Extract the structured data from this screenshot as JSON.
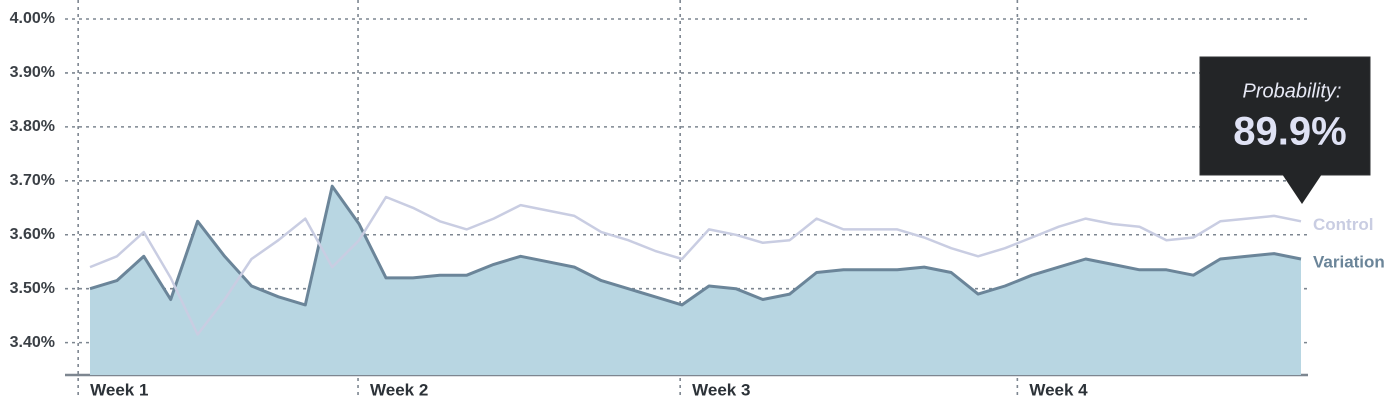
{
  "chart_data": {
    "type": "line",
    "x": [
      0,
      1,
      2,
      3,
      4,
      5,
      6,
      7,
      8,
      9,
      10,
      11,
      12,
      13,
      14,
      15,
      16,
      17,
      18,
      19,
      20,
      21,
      22,
      23,
      24,
      25,
      26,
      27,
      28,
      29,
      30,
      31,
      32,
      33,
      34,
      35,
      36,
      37,
      38,
      39,
      40,
      41,
      42,
      43,
      44,
      45
    ],
    "xlim": [
      -0.44,
      45.3
    ],
    "xticks": [
      {
        "value": -0.44,
        "label": "Week 1"
      },
      {
        "value": 9.96,
        "label": "Week 2"
      },
      {
        "value": 21.93,
        "label": "Week 3"
      },
      {
        "value": 34.46,
        "label": "Week 4"
      }
    ],
    "ylim": [
      3.34,
      4.0
    ],
    "yticks": [
      {
        "value": 3.4,
        "label": "3.40%"
      },
      {
        "value": 3.5,
        "label": "3.50%"
      },
      {
        "value": 3.6,
        "label": "3.60%"
      },
      {
        "value": 3.7,
        "label": "3.70%"
      },
      {
        "value": 3.8,
        "label": "3.80%"
      },
      {
        "value": 3.9,
        "label": "3.90%"
      },
      {
        "value": 4.0,
        "label": "4.00%"
      }
    ],
    "grid": true,
    "series": [
      {
        "name": "Control",
        "color": "#c9cde2",
        "values": [
          3.54,
          3.56,
          3.605,
          3.52,
          3.415,
          3.48,
          3.555,
          3.59,
          3.63,
          3.54,
          3.59,
          3.67,
          3.65,
          3.625,
          3.61,
          3.63,
          3.655,
          3.645,
          3.635,
          3.605,
          3.59,
          3.57,
          3.555,
          3.61,
          3.6,
          3.585,
          3.59,
          3.63,
          3.61,
          3.61,
          3.61,
          3.595,
          3.575,
          3.56,
          3.575,
          3.595,
          3.615,
          3.63,
          3.62,
          3.615,
          3.59,
          3.595,
          3.625,
          3.63,
          3.635,
          3.625
        ]
      },
      {
        "name": "Variation",
        "color": "#6b8599",
        "fill": "#b8d6e2",
        "values": [
          3.5,
          3.515,
          3.56,
          3.48,
          3.625,
          3.56,
          3.505,
          3.485,
          3.47,
          3.69,
          3.62,
          3.52,
          3.52,
          3.525,
          3.525,
          3.545,
          3.56,
          3.55,
          3.54,
          3.515,
          3.5,
          3.485,
          3.47,
          3.505,
          3.5,
          3.48,
          3.49,
          3.53,
          3.535,
          3.535,
          3.535,
          3.54,
          3.53,
          3.49,
          3.505,
          3.525,
          3.54,
          3.555,
          3.545,
          3.535,
          3.535,
          3.525,
          3.555,
          3.56,
          3.565,
          3.555
        ]
      }
    ],
    "tooltip": {
      "label": "Probability:",
      "value": "89.9%"
    }
  }
}
